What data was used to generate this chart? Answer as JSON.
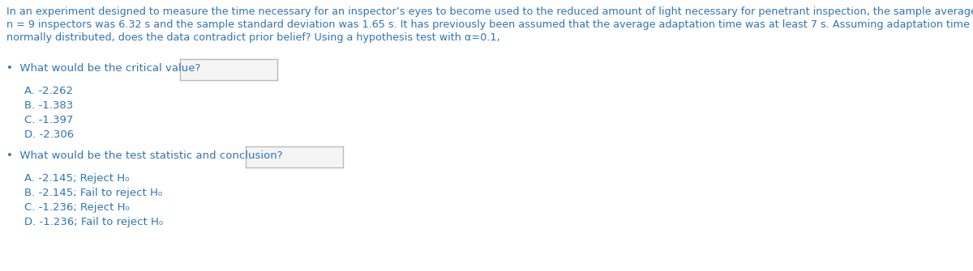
{
  "background_color": "#ffffff",
  "text_color": "#2E74B5",
  "para_line1": "In an experiment designed to measure the time necessary for an inspector’s eyes to become used to the reduced amount of light necessary for penetrant inspection, the sample average time for",
  "para_line2": "n = 9 inspectors was 6.32 s and the sample standard deviation was 1.65 s. It has previously been assumed that the average adaptation time was at least 7 s. Assuming adaptation time to be",
  "para_line3": "normally distributed, does the data contradict prior belief? Using a hypothesis test with α=0.1,",
  "q1_label": "•  What would be the critical value?",
  "q1_options": [
    "A. -2.262",
    "B. -1.383",
    "C. -1.397",
    "D. -2.306"
  ],
  "q2_label": "•  What would be the test statistic and conclusion?",
  "q2_options": [
    "A. -2.145; Reject H₀",
    "B. -2.145; Fail to reject H₀",
    "C. -1.236; Reject H₀",
    "D. -1.236; Fail to reject H₀"
  ],
  "font_size_para": 9.2,
  "font_size_question": 9.5,
  "font_size_options": 9.5,
  "box_edge_color": "#BBBBBB",
  "box_face_color": "#F5F5F5"
}
